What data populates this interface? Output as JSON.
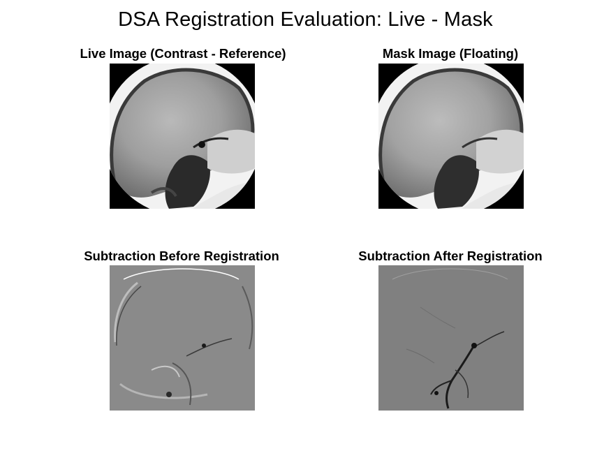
{
  "figure": {
    "title": "DSA Registration Evaluation: Live - Mask",
    "panels": [
      {
        "title": "Live Image (Contrast - Reference)",
        "kind": "live-image"
      },
      {
        "title": "Mask Image (Floating)",
        "kind": "mask-image"
      },
      {
        "title": "Subtraction Before Registration",
        "kind": "subtraction-before"
      },
      {
        "title": "Subtraction After Registration",
        "kind": "subtraction-after"
      }
    ]
  },
  "colors": {
    "background": "#ffffff",
    "black_corner": "#000000",
    "xray_light": "#f4f4f4",
    "xray_mid": "#a9a9a9",
    "xray_dark": "#1e1e1e",
    "subtraction_gray_before": "#8a8a8a",
    "subtraction_gray_after": "#808080",
    "vessel_dark": "#1a1a1a"
  }
}
